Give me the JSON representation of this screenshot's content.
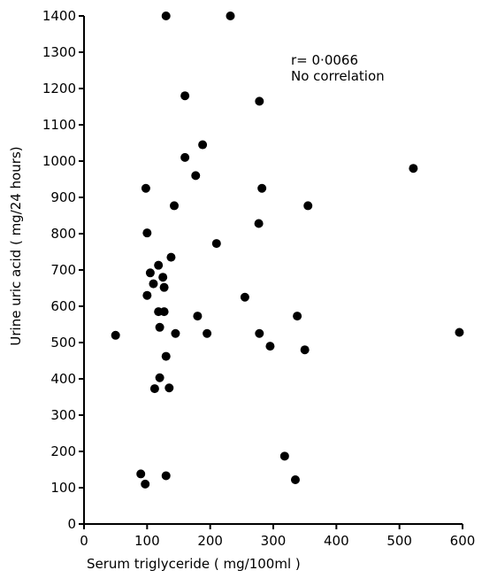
{
  "chart_data": {
    "type": "scatter",
    "xlabel": "Serum triglyceride ( mg/100ml )",
    "ylabel": "Urine uric acid ( mg/24 hours)",
    "xlim": [
      0,
      600
    ],
    "ylim": [
      0,
      1400
    ],
    "x_ticks": [
      0,
      100,
      200,
      300,
      400,
      500,
      600
    ],
    "y_ticks": [
      0,
      100,
      200,
      300,
      400,
      500,
      600,
      700,
      800,
      900,
      1000,
      1100,
      1200,
      1300,
      1400
    ],
    "x_tick_labels": [
      "0",
      "100",
      "200",
      "300",
      "400",
      "500",
      "600"
    ],
    "y_tick_labels": [
      "0",
      "100",
      "200",
      "300",
      "400",
      "500",
      "600",
      "700",
      "800",
      "900",
      "1000",
      "1100",
      "1200",
      "1300",
      "1400"
    ],
    "annotations": [
      "r= 0·0066",
      "No correlation"
    ],
    "grid": false,
    "point_color": "#000000",
    "points": [
      {
        "x": 130,
        "y": 1400
      },
      {
        "x": 232,
        "y": 1400
      },
      {
        "x": 160,
        "y": 1180
      },
      {
        "x": 278,
        "y": 1165
      },
      {
        "x": 188,
        "y": 1045
      },
      {
        "x": 160,
        "y": 1010
      },
      {
        "x": 522,
        "y": 980
      },
      {
        "x": 177,
        "y": 960
      },
      {
        "x": 98,
        "y": 925
      },
      {
        "x": 282,
        "y": 925
      },
      {
        "x": 143,
        "y": 877
      },
      {
        "x": 355,
        "y": 877
      },
      {
        "x": 277,
        "y": 828
      },
      {
        "x": 100,
        "y": 802
      },
      {
        "x": 210,
        "y": 773
      },
      {
        "x": 138,
        "y": 735
      },
      {
        "x": 118,
        "y": 713
      },
      {
        "x": 105,
        "y": 692
      },
      {
        "x": 125,
        "y": 680
      },
      {
        "x": 110,
        "y": 662
      },
      {
        "x": 127,
        "y": 652
      },
      {
        "x": 100,
        "y": 630
      },
      {
        "x": 255,
        "y": 625
      },
      {
        "x": 118,
        "y": 585
      },
      {
        "x": 127,
        "y": 585
      },
      {
        "x": 180,
        "y": 573
      },
      {
        "x": 338,
        "y": 573
      },
      {
        "x": 120,
        "y": 542
      },
      {
        "x": 50,
        "y": 520
      },
      {
        "x": 145,
        "y": 525
      },
      {
        "x": 195,
        "y": 525
      },
      {
        "x": 278,
        "y": 525
      },
      {
        "x": 595,
        "y": 528
      },
      {
        "x": 295,
        "y": 490
      },
      {
        "x": 350,
        "y": 480
      },
      {
        "x": 130,
        "y": 462
      },
      {
        "x": 120,
        "y": 403
      },
      {
        "x": 112,
        "y": 373
      },
      {
        "x": 135,
        "y": 375
      },
      {
        "x": 318,
        "y": 187
      },
      {
        "x": 90,
        "y": 138
      },
      {
        "x": 130,
        "y": 133
      },
      {
        "x": 335,
        "y": 122
      },
      {
        "x": 97,
        "y": 110
      }
    ]
  }
}
